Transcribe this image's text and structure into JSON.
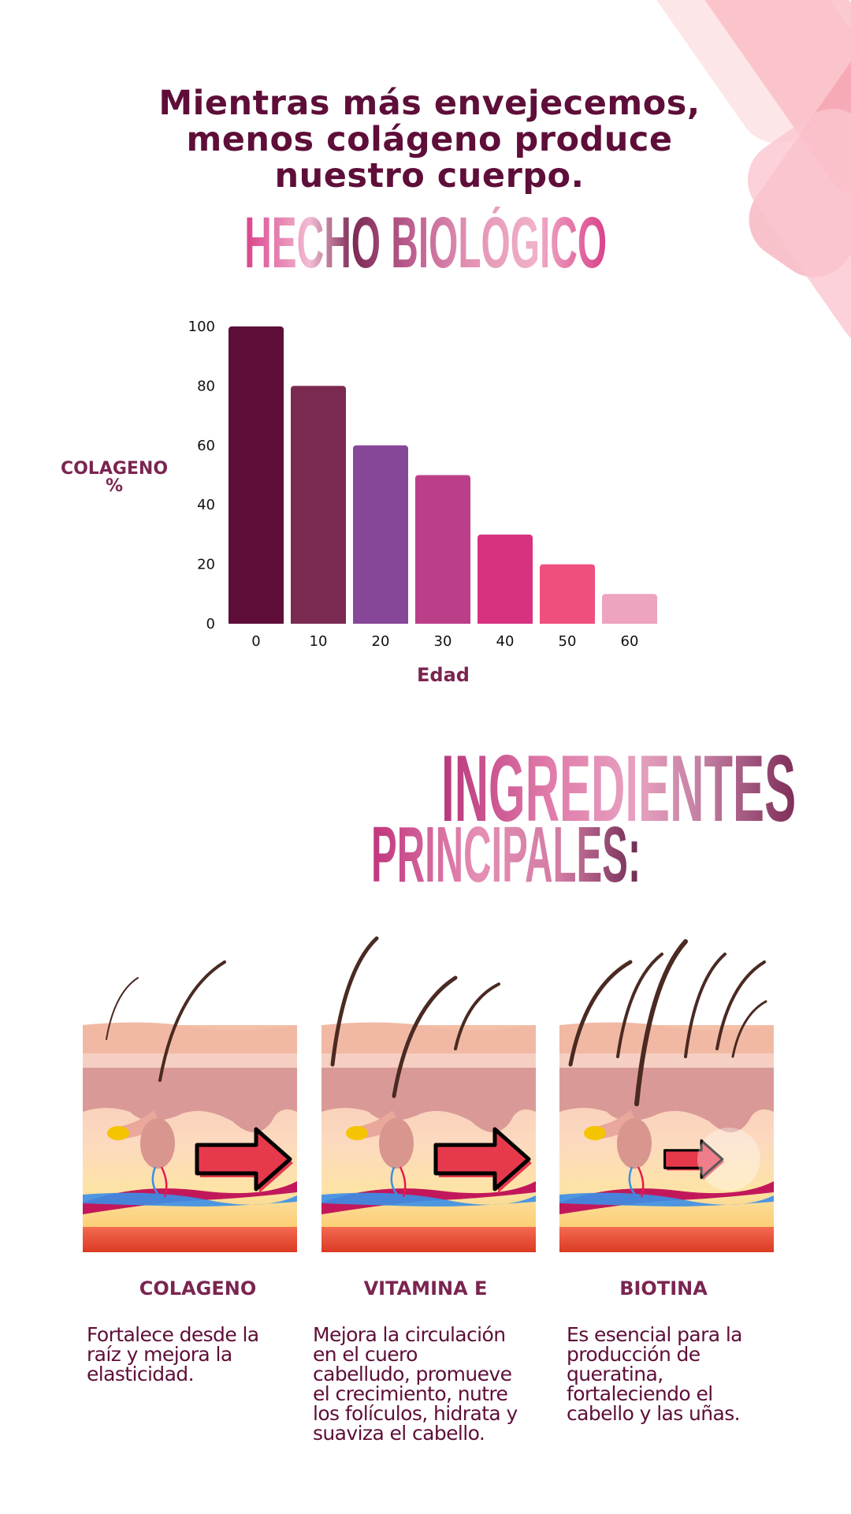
{
  "headline": [
    "Mientras más envejecemos,",
    "menos colágeno produce",
    "nuestro cuerpo."
  ],
  "fact_title": "HECHO BIOLÓGICO",
  "chart_data": {
    "type": "bar",
    "categories": [
      "0",
      "10",
      "20",
      "30",
      "40",
      "50",
      "60"
    ],
    "values": [
      100,
      80,
      60,
      50,
      30,
      20,
      10
    ],
    "colors": [
      "#5e0e38",
      "#7a2a50",
      "#874799",
      "#bb3f88",
      "#d73280",
      "#ef4f7d",
      "#eea3bf"
    ],
    "yticks": [
      "0",
      "20",
      "40",
      "60",
      "80",
      "100"
    ],
    "ylim": [
      0,
      100
    ],
    "ylabel_lines": [
      "COLAGENO",
      "%"
    ],
    "xlabel": "Edad",
    "grid": false
  },
  "ingredients_title": {
    "line1": "INGREDIENTES",
    "line2": "PRINCIPALES:"
  },
  "ingredients": [
    {
      "name": "COLAGENO",
      "desc": [
        "Fortalece desde la",
        "raíz y mejora la",
        "elasticidad."
      ]
    },
    {
      "name": "VITAMINA E",
      "desc": [
        "Mejora la circulación",
        "en el cuero",
        "cabelludo, promueve",
        "el crecimiento, nutre",
        "los folículos, hidrata y",
        "suaviza el cabello."
      ]
    },
    {
      "name": "BIOTINA",
      "desc": [
        "Es esencial para la",
        "producción de",
        "queratina,",
        "fortaleciendo el",
        "cabello y las uñas."
      ]
    }
  ],
  "colors": {
    "primary_text": "#5e0e38",
    "label": "#7a2550",
    "arrow": "#e63a4c"
  }
}
